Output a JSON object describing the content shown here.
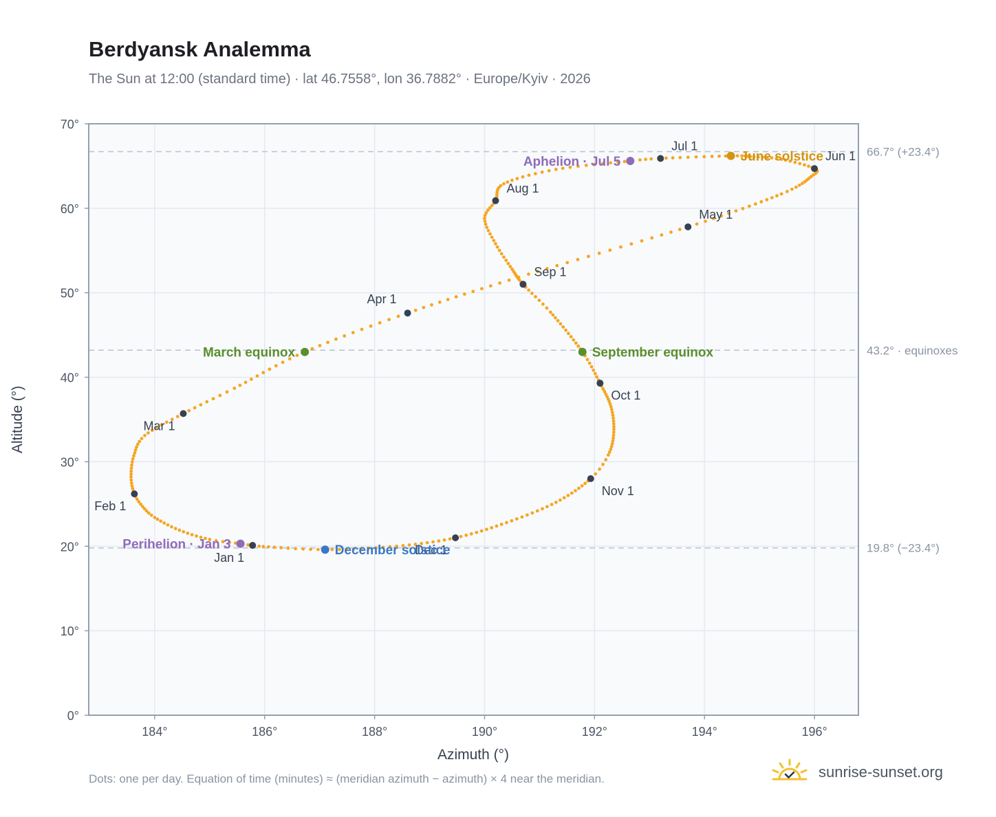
{
  "header": {
    "title": "Berdyansk Analemma",
    "subtitle": "The Sun at 12:00 (standard time) · lat 46.7558°, lon 36.7882° · Europe/Kyiv · 2026"
  },
  "footer": {
    "note": "Dots: one per day. Equation of time (minutes) ≈ (meridian azimuth − azimuth) × 4 near the meridian.",
    "brand": "sunrise-sunset.org",
    "brand_icon": "sun-check-icon"
  },
  "colors": {
    "path": "#f5a623",
    "month_marker": "#374151",
    "equinox": "#5a8f2e",
    "june_solstice": "#d4940f",
    "december_solstice": "#3b78c4",
    "apsis": "#8f6bb8",
    "grid": "#e5e9ef",
    "reference_line": "#b8c2cf",
    "plot_bg": "#f8fafc",
    "frame": "#94a0b0",
    "brand_sun": "#f2c12e"
  },
  "chart_data": {
    "type": "scatter",
    "title": "Berdyansk Analemma",
    "xlabel": "Azimuth (°)",
    "ylabel": "Altitude (°)",
    "xlim": [
      182.8,
      196.8
    ],
    "ylim": [
      0,
      70
    ],
    "x_ticks": [
      184,
      186,
      188,
      190,
      192,
      194,
      196
    ],
    "x_tick_labels": [
      "184°",
      "186°",
      "188°",
      "190°",
      "192°",
      "194°",
      "196°"
    ],
    "y_ticks": [
      0,
      10,
      20,
      30,
      40,
      50,
      60,
      70
    ],
    "y_tick_labels": [
      "0°",
      "10°",
      "20°",
      "30°",
      "40°",
      "50°",
      "60°",
      "70°"
    ],
    "grid": true,
    "series": [
      {
        "name": "",
        "note": "one dot per day",
        "anchors": [
          {
            "day": 1,
            "az": 185.78,
            "alt": 20.1
          },
          {
            "day": 3,
            "az": 185.56,
            "alt": 20.3
          },
          {
            "day": 8,
            "az": 185.0,
            "alt": 20.8
          },
          {
            "day": 15,
            "az": 184.45,
            "alt": 21.9
          },
          {
            "day": 22,
            "az": 184.0,
            "alt": 23.4
          },
          {
            "day": 27,
            "az": 183.78,
            "alt": 24.7
          },
          {
            "day": 32,
            "az": 183.63,
            "alt": 26.2
          },
          {
            "day": 38,
            "az": 183.57,
            "alt": 28.2
          },
          {
            "day": 45,
            "az": 183.62,
            "alt": 30.7
          },
          {
            "day": 52,
            "az": 183.82,
            "alt": 33.1
          },
          {
            "day": 60,
            "az": 184.52,
            "alt": 35.7
          },
          {
            "day": 68,
            "az": 185.45,
            "alt": 38.7
          },
          {
            "day": 79,
            "az": 186.73,
            "alt": 43.0
          },
          {
            "day": 91,
            "az": 188.6,
            "alt": 47.6
          },
          {
            "day": 105,
            "az": 190.8,
            "alt": 52.2
          },
          {
            "day": 121,
            "az": 193.7,
            "alt": 57.8
          },
          {
            "day": 135,
            "az": 195.4,
            "alt": 61.7
          },
          {
            "day": 145,
            "az": 195.95,
            "alt": 63.8
          },
          {
            "day": 152,
            "az": 196.0,
            "alt": 64.7
          },
          {
            "day": 160,
            "az": 195.4,
            "alt": 65.8
          },
          {
            "day": 166,
            "az": 194.9,
            "alt": 66.1
          },
          {
            "day": 172,
            "az": 194.48,
            "alt": 66.2
          },
          {
            "day": 182,
            "az": 193.2,
            "alt": 65.9
          },
          {
            "day": 186,
            "az": 192.65,
            "alt": 65.6
          },
          {
            "day": 196,
            "az": 191.3,
            "alt": 64.6
          },
          {
            "day": 205,
            "az": 190.35,
            "alt": 62.9
          },
          {
            "day": 213,
            "az": 190.2,
            "alt": 60.9
          },
          {
            "day": 220,
            "az": 190.0,
            "alt": 58.8
          },
          {
            "day": 228,
            "az": 190.2,
            "alt": 55.8
          },
          {
            "day": 236,
            "az": 190.5,
            "alt": 52.8
          },
          {
            "day": 244,
            "az": 190.7,
            "alt": 51.0
          },
          {
            "day": 252,
            "az": 191.2,
            "alt": 47.7
          },
          {
            "day": 265,
            "az": 191.78,
            "alt": 43.0
          },
          {
            "day": 274,
            "az": 192.1,
            "alt": 39.3
          },
          {
            "day": 283,
            "az": 192.3,
            "alt": 36.5
          },
          {
            "day": 292,
            "az": 192.35,
            "alt": 33.5
          },
          {
            "day": 300,
            "az": 192.25,
            "alt": 30.8
          },
          {
            "day": 305,
            "az": 191.93,
            "alt": 28.0
          },
          {
            "day": 315,
            "az": 191.3,
            "alt": 25.2
          },
          {
            "day": 325,
            "az": 190.4,
            "alt": 22.8
          },
          {
            "day": 335,
            "az": 189.47,
            "alt": 21.0
          },
          {
            "day": 345,
            "az": 188.4,
            "alt": 20.0
          },
          {
            "day": 355,
            "az": 187.1,
            "alt": 19.6
          },
          {
            "day": 365,
            "az": 185.9,
            "alt": 20.0
          }
        ]
      }
    ],
    "month_markers": [
      {
        "label": "Jan 1",
        "az": 185.78,
        "alt": 20.1,
        "label_pos": "below-left"
      },
      {
        "label": "Feb 1",
        "az": 183.63,
        "alt": 26.2,
        "label_pos": "below-left"
      },
      {
        "label": "Mar 1",
        "az": 184.52,
        "alt": 35.7,
        "label_pos": "below-left"
      },
      {
        "label": "Apr 1",
        "az": 188.6,
        "alt": 47.6,
        "label_pos": "above-left"
      },
      {
        "label": "May 1",
        "az": 193.7,
        "alt": 57.8,
        "label_pos": "above-right"
      },
      {
        "label": "Jun 1",
        "az": 196.0,
        "alt": 64.7,
        "label_pos": "above-right"
      },
      {
        "label": "Jul 1",
        "az": 193.2,
        "alt": 65.9,
        "label_pos": "above-right"
      },
      {
        "label": "Aug 1",
        "az": 190.2,
        "alt": 60.9,
        "label_pos": "above-right"
      },
      {
        "label": "Sep 1",
        "az": 190.7,
        "alt": 51.0,
        "label_pos": "above-right"
      },
      {
        "label": "Oct 1",
        "az": 192.1,
        "alt": 39.3,
        "label_pos": "below-right"
      },
      {
        "label": "Nov 1",
        "az": 191.93,
        "alt": 28.0,
        "label_pos": "below-right"
      },
      {
        "label": "Dec 1",
        "az": 189.47,
        "alt": 21.0,
        "label_pos": "below-left"
      }
    ],
    "events": [
      {
        "label": "March equinox",
        "az": 186.73,
        "alt": 43.0,
        "color": "#5a8f2e",
        "label_pos": "left"
      },
      {
        "label": "September equinox",
        "az": 191.78,
        "alt": 43.0,
        "color": "#5a8f2e",
        "label_pos": "right"
      },
      {
        "label": "June solstice",
        "az": 194.48,
        "alt": 66.2,
        "color": "#d4940f",
        "label_pos": "right"
      },
      {
        "label": "December solstice",
        "az": 187.1,
        "alt": 19.6,
        "color": "#3b78c4",
        "label_pos": "right"
      },
      {
        "label": "Aphelion · Jul 5",
        "az": 192.65,
        "alt": 65.6,
        "color": "#8f6bb8",
        "label_pos": "left"
      },
      {
        "label": "Perihelion · Jan 3",
        "az": 185.56,
        "alt": 20.3,
        "color": "#8f6bb8",
        "label_pos": "left"
      }
    ],
    "reference_lines": [
      {
        "alt": 66.7,
        "label": "66.7° (+23.4°)"
      },
      {
        "alt": 43.2,
        "label": "43.2° · equinoxes"
      },
      {
        "alt": 19.8,
        "label": "19.8° (−23.4°)"
      }
    ]
  }
}
